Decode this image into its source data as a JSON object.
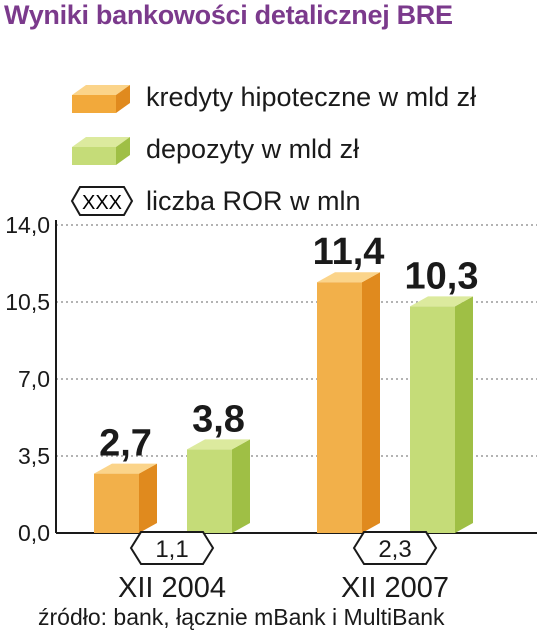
{
  "title": "Wyniki bankowości detalicznej BRE",
  "legend": [
    {
      "label": "kredyty hipoteczne w mld zł",
      "color": "#f2a93b"
    },
    {
      "label": "depozyty w mld zł",
      "color": "#b9d36a"
    },
    {
      "label": "liczba ROR w mln",
      "symbol": "XXX"
    }
  ],
  "source": "źródło: bank, łącznie mBank i MultiBank",
  "chart_data": {
    "type": "bar",
    "categories": [
      "XII 2004",
      "XII 2007"
    ],
    "series": [
      {
        "name": "kredyty hipoteczne w mld zł",
        "values": [
          2.7,
          11.4
        ],
        "labels": [
          "2,7",
          "11,4"
        ],
        "color": "#f2a93b"
      },
      {
        "name": "depozyty w mld zł",
        "values": [
          3.8,
          10.3
        ],
        "labels": [
          "3,8",
          "10,3"
        ],
        "color": "#b9d36a"
      }
    ],
    "ror": {
      "name": "liczba ROR w mln",
      "values": [
        1.1,
        2.3
      ],
      "labels": [
        "1,1",
        "2,3"
      ]
    },
    "yticks": [
      0,
      3.5,
      7,
      10.5,
      14
    ],
    "ytick_labels": [
      "0,0",
      "3,5",
      "7,0",
      "10,5",
      "14,0"
    ],
    "ylim": [
      0,
      14
    ],
    "grid": true
  }
}
